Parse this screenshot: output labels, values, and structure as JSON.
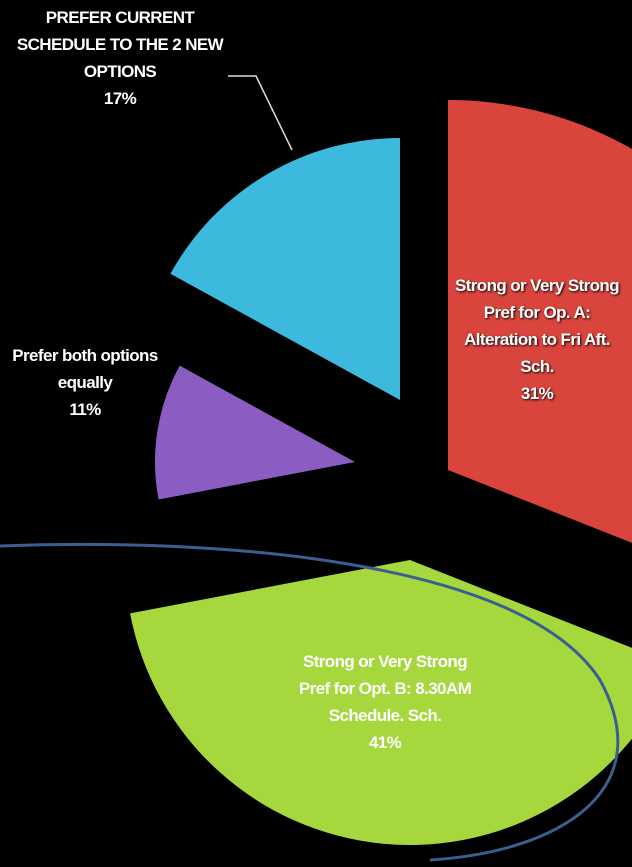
{
  "chart_data": {
    "type": "pie",
    "categories": [
      "Strong or Very Strong Pref for Op. A: Alteration to Fri Aft. Sch.",
      "Strong or Very Strong Pref for Opt. B: 8.30AM Schedule. Sch.",
      "Prefer both options equally",
      "PREFER CURRENT SCHEDULE TO THE 2 NEW OPTIONS"
    ],
    "values": [
      31,
      41,
      11,
      17
    ],
    "value_labels": [
      "31%",
      "41%",
      "11%",
      "17%"
    ],
    "colors": [
      "#d9443c",
      "#a6d83e",
      "#8b5cc2",
      "#3db9de"
    ]
  }
}
